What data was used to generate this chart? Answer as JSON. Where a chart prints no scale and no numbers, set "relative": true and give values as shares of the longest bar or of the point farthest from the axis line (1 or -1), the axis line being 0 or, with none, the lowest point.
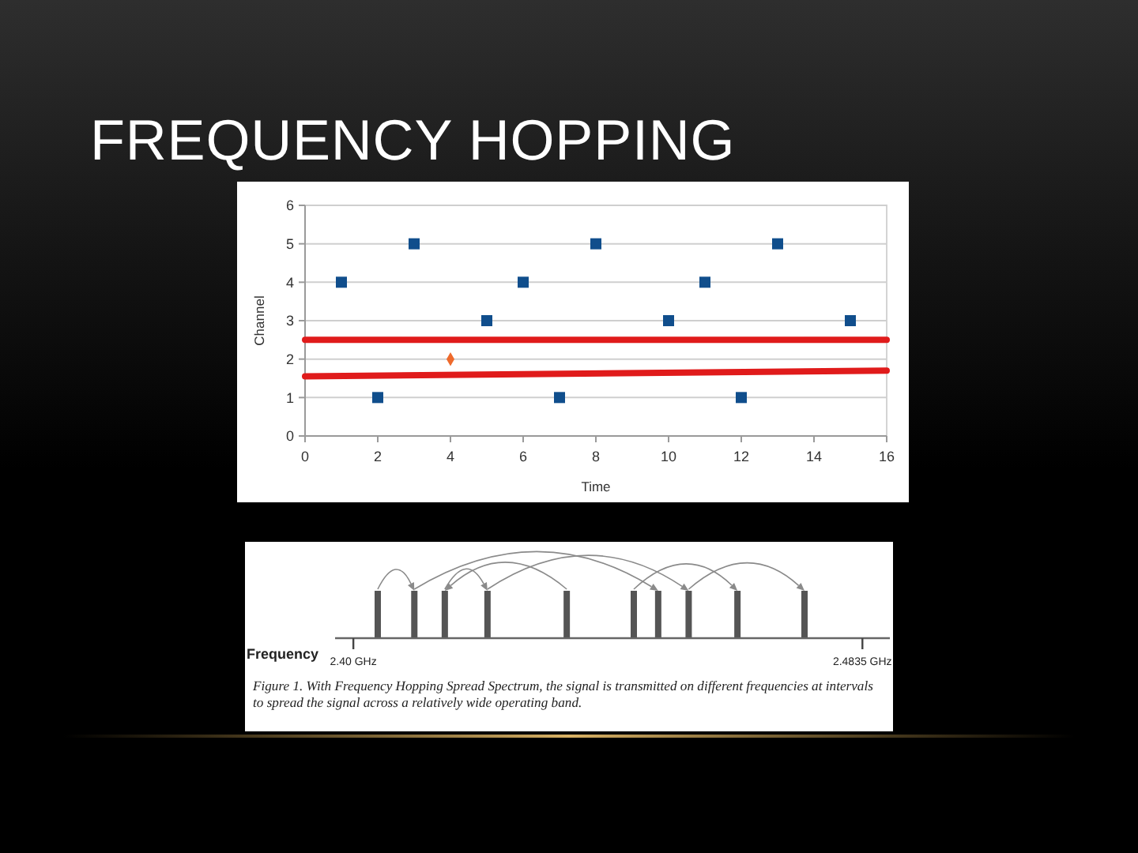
{
  "chart_data": [
    {
      "type": "scatter",
      "title": "FREQUENCY HOPPING",
      "xlabel": "Time",
      "ylabel": "Channel",
      "xlim": [
        0,
        16
      ],
      "ylim": [
        0,
        6
      ],
      "xticks": [
        0,
        2,
        4,
        6,
        8,
        10,
        12,
        14,
        16
      ],
      "yticks": [
        0,
        1,
        2,
        3,
        4,
        5,
        6
      ],
      "grid": "y",
      "series": [
        {
          "color": "#104e8c",
          "marker": "square",
          "x": [
            1,
            2,
            3,
            5,
            6,
            7,
            8,
            10,
            11,
            12,
            13,
            15
          ],
          "values": [
            4,
            1,
            5,
            3,
            4,
            1,
            5,
            3,
            4,
            1,
            5,
            3
          ]
        },
        {
          "color": "#ee6a2c",
          "marker": "diamond",
          "x": [
            4
          ],
          "values": [
            2
          ]
        },
        {
          "type": "line",
          "color": "#e01b1b",
          "marker": "none",
          "x": [
            0,
            16
          ],
          "values": [
            2.5,
            2.5
          ]
        },
        {
          "type": "line",
          "color": "#e01b1b",
          "marker": "none",
          "x": [
            0,
            16
          ],
          "values": [
            1.55,
            1.7
          ]
        }
      ]
    },
    {
      "type": "bar",
      "relative": true,
      "xlabel": "Frequency",
      "x": [
        2.404,
        2.41,
        2.415,
        2.422,
        2.435,
        2.446,
        2.45,
        2.455,
        2.463,
        2.474
      ],
      "values": [
        1,
        1,
        1,
        1,
        1,
        1,
        1,
        1,
        1,
        1
      ],
      "color": "#555555",
      "xlim": [
        2.397,
        2.488
      ],
      "xticks": [
        {
          "value": 2.4,
          "label": "2.40 GHz"
        },
        {
          "value": 2.4835,
          "label": "2.4835 GHz"
        }
      ],
      "annotations": [
        "Figure 1. With Frequency Hopping Spread Spectrum, the signal is transmitted on different frequencies at intervals to spread the signal across a relatively wide operating band."
      ]
    }
  ]
}
